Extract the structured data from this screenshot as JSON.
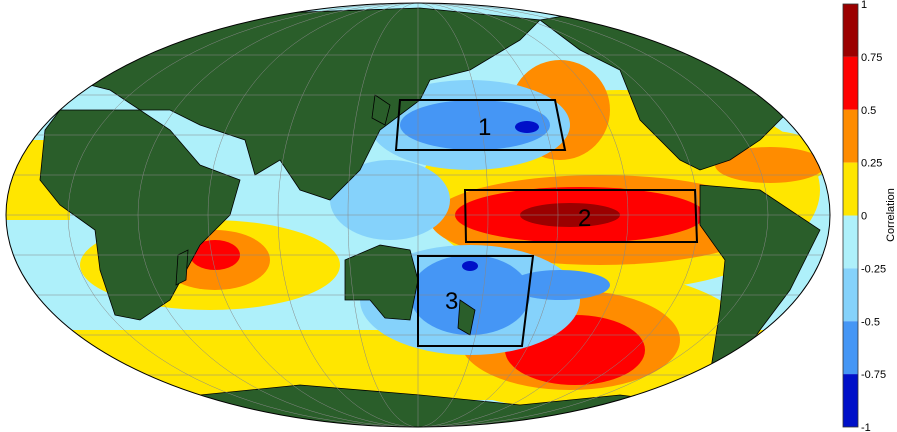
{
  "map": {
    "regions": [
      {
        "label": "1"
      },
      {
        "label": "2"
      },
      {
        "label": "3"
      }
    ],
    "colors": {
      "land": "#2a5e2a",
      "ocean_base": "#aef0fa"
    }
  },
  "colorbar": {
    "label": "Correlation",
    "ticks": [
      "1",
      "0.75",
      "0.5",
      "0.25",
      "0",
      "-0.25",
      "-0.5",
      "-0.75",
      "-1"
    ],
    "range": [
      -1,
      1
    ],
    "bins": [
      {
        "from": 0.75,
        "to": 1,
        "color": "#9b0000"
      },
      {
        "from": 0.5,
        "to": 0.75,
        "color": "#ff0000"
      },
      {
        "from": 0.25,
        "to": 0.5,
        "color": "#ff8c00"
      },
      {
        "from": 0,
        "to": 0.25,
        "color": "#ffe600"
      },
      {
        "from": -0.25,
        "to": 0,
        "color": "#aef0fa"
      },
      {
        "from": -0.5,
        "to": -0.25,
        "color": "#85d2fb"
      },
      {
        "from": -0.75,
        "to": -0.5,
        "color": "#4596f5"
      },
      {
        "from": -1,
        "to": -0.75,
        "color": "#0010c8"
      }
    ]
  }
}
